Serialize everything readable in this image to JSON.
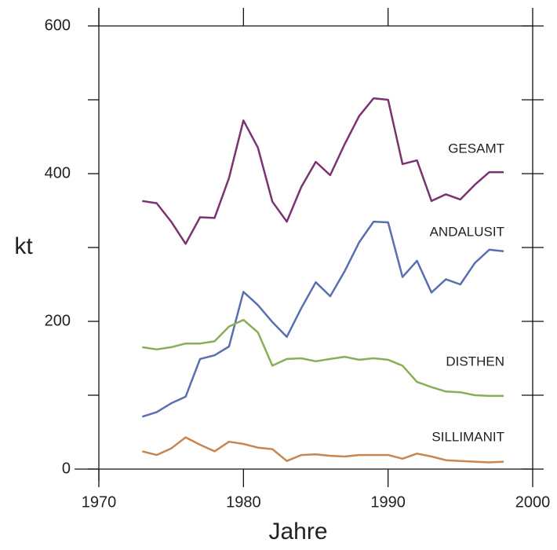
{
  "chart_data": {
    "type": "line",
    "xlabel": "Jahre",
    "ylabel": "kt",
    "x": [
      1973,
      1974,
      1975,
      1976,
      1977,
      1978,
      1979,
      1980,
      1981,
      1982,
      1983,
      1984,
      1985,
      1986,
      1987,
      1988,
      1989,
      1990,
      1991,
      1992,
      1993,
      1994,
      1995,
      1996,
      1997,
      1998
    ],
    "series": [
      {
        "name": "GESAMT",
        "color": "#7b3270",
        "values": [
          363,
          360,
          335,
          305,
          341,
          340,
          394,
          472,
          435,
          362,
          335,
          382,
          416,
          398,
          440,
          478,
          502,
          500,
          413,
          418,
          363,
          372,
          365,
          385,
          402,
          402
        ]
      },
      {
        "name": "ANDALUSIT",
        "color": "#5a6fb0",
        "values": [
          71,
          77,
          89,
          98,
          149,
          154,
          166,
          240,
          222,
          199,
          179,
          218,
          253,
          234,
          268,
          307,
          335,
          334,
          260,
          282,
          239,
          257,
          250,
          279,
          297,
          295
        ]
      },
      {
        "name": "DISTHEN",
        "color": "#8aad5a",
        "values": [
          165,
          162,
          165,
          170,
          170,
          173,
          193,
          202,
          185,
          140,
          149,
          150,
          146,
          149,
          152,
          148,
          150,
          148,
          140,
          118,
          111,
          105,
          104,
          100,
          99,
          99
        ]
      },
      {
        "name": "SILLIMANIT",
        "color": "#c98550",
        "values": [
          24,
          19,
          28,
          43,
          33,
          24,
          37,
          34,
          29,
          27,
          11,
          19,
          20,
          18,
          17,
          19,
          19,
          19,
          14,
          21,
          17,
          12,
          11,
          10,
          9,
          10
        ]
      }
    ],
    "xlim": [
      1970,
      2000
    ],
    "xticks": [
      1970,
      1980,
      1990,
      2000
    ],
    "ylim": [
      0,
      600
    ],
    "yticks": [
      0,
      200,
      400,
      600
    ],
    "yminor_ticks": [
      100,
      300,
      500
    ]
  }
}
